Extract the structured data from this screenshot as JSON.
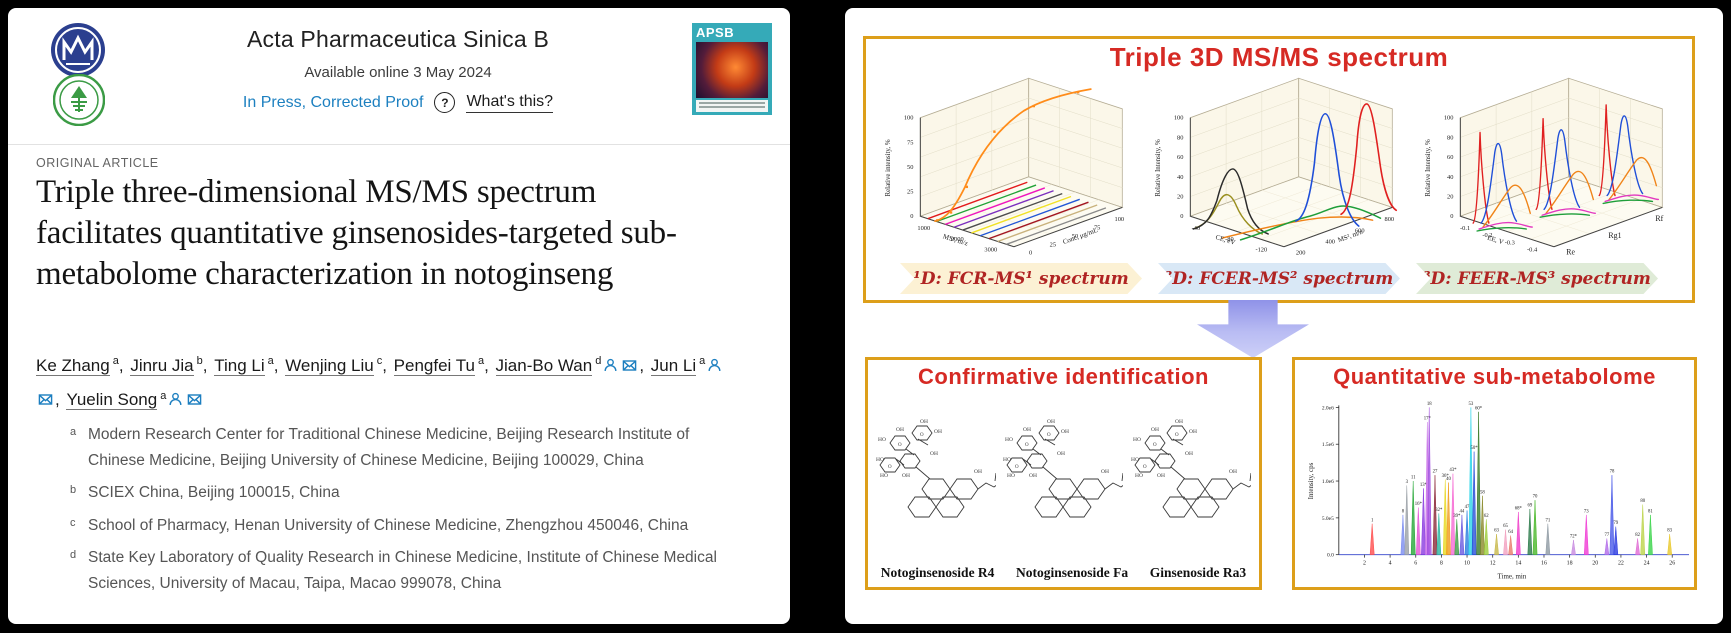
{
  "left_panel": {
    "journal_title": "Acta Pharmaceutica Sinica B",
    "available_online": "Available online 3 May 2024",
    "in_press_label": "In Press, Corrected Proof",
    "question_icon": "?",
    "whats_this_label": "What's this?",
    "cover_label": "APSB",
    "article_type": "ORIGINAL ARTICLE",
    "title": "Triple three-dimensional MS/MS spectrum facilitates quantitative ginsenosides-targeted sub-metabolome characterization in notoginseng",
    "authors": [
      {
        "name": "Ke Zhang",
        "sup": "a",
        "corresponding": false
      },
      {
        "name": "Jinru Jia",
        "sup": "b",
        "corresponding": false
      },
      {
        "name": "Ting Li",
        "sup": "a",
        "corresponding": false
      },
      {
        "name": "Wenjing Liu",
        "sup": "c",
        "corresponding": false
      },
      {
        "name": "Pengfei Tu",
        "sup": "a",
        "corresponding": false
      },
      {
        "name": "Jian-Bo Wan",
        "sup": "d",
        "corresponding": true
      },
      {
        "name": "Jun Li",
        "sup": "a",
        "corresponding": true
      },
      {
        "name": "Yuelin Song",
        "sup": "a",
        "corresponding": true
      }
    ],
    "affiliations": [
      {
        "sup": "a",
        "text": "Modern Research Center for Traditional Chinese Medicine, Beijing Research Institute of Chinese Medicine, Beijing University of Chinese Medicine, Beijing 100029, China"
      },
      {
        "sup": "b",
        "text": "SCIEX China, Beijing 100015, China"
      },
      {
        "sup": "c",
        "text": "School of Pharmacy, Henan University of Chinese Medicine, Zhengzhou 450046, China"
      },
      {
        "sup": "d",
        "text": "State Key Laboratory of Quality Research in Chinese Medicine, Institute of Chinese Medical Sciences, University of Macau, Taipa, Macao 999078, China"
      }
    ]
  },
  "graphical_abstract": {
    "top_title": "Triple 3D MS/MS spectrum",
    "banners": [
      {
        "label": "¹D:  FCR-MS¹ spectrum"
      },
      {
        "label": "²D: FCER-MS² spectrum"
      },
      {
        "label": "³D: FEER-MS³ spectrum"
      }
    ],
    "confirmative_title": "Confirmative identification",
    "quantitative_title": "Quantitative sub-metabolome",
    "compounds": [
      "Notoginsenoside R4",
      "Notoginsenoside Fa",
      "Ginsenoside Ra3"
    ]
  },
  "chart_data": [
    {
      "type": "line",
      "projection": "3d",
      "name": "1D: FCR-MS1 spectrum",
      "ylabel": "Relative intensity, %",
      "yticks": [
        "0",
        "25",
        "50",
        "75",
        "100"
      ],
      "x1label": "MS¹, m/z",
      "x1ticks": [
        "1000",
        "2000",
        "3000"
      ],
      "x2label": "Conc, μg/mL",
      "x2ticks": [
        "0",
        "25",
        "50",
        "75",
        "100"
      ],
      "description": "Orange calibration curve rising with concentration; flat multicolored ion traces across the base plane",
      "floor_colors": [
        "#e31a1c",
        "#21a337",
        "#f012be",
        "#7b2fbe",
        "#4d4d4d",
        "#f0e125",
        "#2257d6",
        "#a31621",
        "#c9b27c",
        "#8a8a8a"
      ]
    },
    {
      "type": "line",
      "projection": "3d",
      "name": "2D: FCER-MS2 spectrum",
      "ylabel": "Relative Intensity, %",
      "yticks": [
        "0",
        "20",
        "40",
        "60",
        "80",
        "100"
      ],
      "x1label": "CE, eV",
      "x1ticks": [
        "-40",
        "-80",
        "-120"
      ],
      "x2label": "MS², m/z",
      "x2ticks": [
        "200",
        "400",
        "600",
        "800"
      ],
      "series_colors": [
        "#2b2b2b",
        "#9a8f1f",
        "#f08419",
        "#1f9e3a",
        "#1f4fd8",
        "#e02020"
      ],
      "description": "Collision-energy breakdown curves; tall blue and red peaks near 100%, smaller black and dark-yellow peaks, low orange and green traces"
    },
    {
      "type": "line",
      "projection": "3d",
      "name": "3D: FEER-MS3 spectrum",
      "ylabel": "Relative Intensity, %",
      "yticks": [
        "0",
        "20",
        "40",
        "60",
        "80",
        "100"
      ],
      "x1label": "EE, V",
      "x1ticks": [
        "-0.1",
        "-0.2",
        "-0.3",
        "-0.4"
      ],
      "x2ticks": [
        "Re",
        "Rg1",
        "Rf"
      ],
      "series_colors": [
        "#e02020",
        "#1f4fd8",
        "#f08419",
        "#e339c0",
        "#1f9e3a"
      ],
      "description": "Excitation-energy curves for Re, Rg1 and Rf; red spikes and blue peaks near 100%, orange humps ~40%, low magenta and green traces"
    },
    {
      "type": "line",
      "name": "chromatogram",
      "ylabel": "Intensity, cps",
      "yticks": [
        "2.0e6",
        "1.5e6",
        "1.0e6",
        "5.0e5",
        "0.0"
      ],
      "xlabel": "Time, min",
      "xticks": [
        2,
        4,
        6,
        8,
        10,
        12,
        14,
        16,
        18,
        20,
        22,
        24,
        26
      ],
      "xlim": [
        0,
        27
      ],
      "ylim_label": "0 to 2.0e6",
      "peaks": [
        [
          2.6,
          0.21,
          "#ff4d4d",
          "1"
        ],
        [
          5.0,
          0.27,
          "#7a8cf0",
          "8"
        ],
        [
          5.3,
          0.47,
          "#9aa0a6",
          "3"
        ],
        [
          5.8,
          0.5,
          "#27a838",
          "11"
        ],
        [
          6.2,
          0.32,
          "#e454d4",
          "16*"
        ],
        [
          6.6,
          0.45,
          "#8a3ae0",
          "13*"
        ],
        [
          6.9,
          0.9,
          "#c86ee8",
          "17*"
        ],
        [
          7.05,
          1.0,
          "#a14de0",
          "18"
        ],
        [
          7.5,
          0.54,
          "#8c2a3a",
          "27"
        ],
        [
          7.8,
          0.28,
          "#2bb5a0",
          "32*"
        ],
        [
          8.3,
          0.51,
          "#e8d81f",
          "36*"
        ],
        [
          8.55,
          0.49,
          "#f09c1a",
          "40"
        ],
        [
          8.9,
          0.55,
          "#f66ad4",
          "43*"
        ],
        [
          9.2,
          0.24,
          "#3f9c43",
          "39*"
        ],
        [
          9.6,
          0.27,
          "#6a5ae0",
          "44"
        ],
        [
          10.0,
          0.3,
          "#2a7de0",
          "47"
        ],
        [
          10.3,
          1.0,
          "#2ad4e8",
          "53"
        ],
        [
          10.55,
          0.7,
          "#2a50d8",
          "50*"
        ],
        [
          10.9,
          0.97,
          "#3a7a28",
          "60*"
        ],
        [
          11.2,
          0.4,
          "#8a8a2a",
          "58"
        ],
        [
          11.5,
          0.24,
          "#9ccc3a",
          "62"
        ],
        [
          12.3,
          0.14,
          "#c8b84a",
          "63"
        ],
        [
          13.0,
          0.17,
          "#f2a0c0",
          "65"
        ],
        [
          13.4,
          0.13,
          "#e87a6a",
          "64"
        ],
        [
          14.0,
          0.29,
          "#f03ac8",
          "68*"
        ],
        [
          14.9,
          0.31,
          "#2a7a4a",
          "69"
        ],
        [
          15.3,
          0.37,
          "#4ab82a",
          "70"
        ],
        [
          16.3,
          0.21,
          "#8f9aa3",
          "71"
        ],
        [
          18.3,
          0.1,
          "#c88ae0",
          "72*"
        ],
        [
          19.3,
          0.27,
          "#f03ad4",
          "73"
        ],
        [
          20.9,
          0.11,
          "#b06ae8",
          "77"
        ],
        [
          21.3,
          0.54,
          "#4a5ae8",
          "78"
        ],
        [
          21.6,
          0.19,
          "#2a3ae0",
          "79"
        ],
        [
          23.3,
          0.11,
          "#e06ad4",
          "82"
        ],
        [
          23.7,
          0.34,
          "#bcd44a",
          "80"
        ],
        [
          24.3,
          0.27,
          "#3ad44a",
          "81"
        ],
        [
          25.8,
          0.14,
          "#e8c82a",
          "83"
        ]
      ]
    }
  ]
}
